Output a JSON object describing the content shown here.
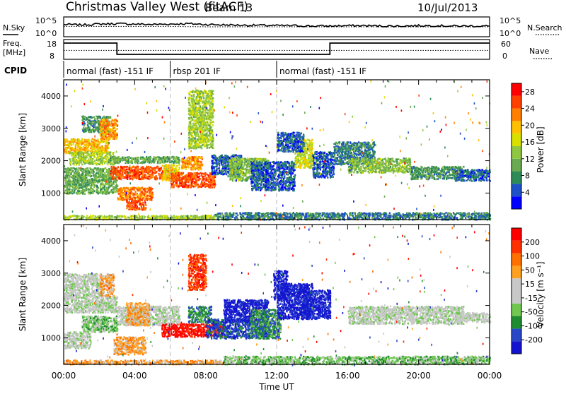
{
  "header": {
    "title": "Christmas Valley West (fitACF)",
    "beam": "Beam 13",
    "date": "10/Jul/2013"
  },
  "labels": {
    "nsky": "N.Sky",
    "nsearch": "N.Search",
    "freq": "Freq.",
    "mhz": "[MHz]",
    "nave": "Nave",
    "cpid": "CPID"
  },
  "cpid_segments": [
    {
      "start_hour": 0,
      "label": "normal (fast) -151 IF"
    },
    {
      "start_hour": 6,
      "label": "rbsp 201 IF"
    },
    {
      "start_hour": 12,
      "label": "normal (fast) -151 IF"
    }
  ],
  "noise_axis": {
    "left_ticks": [
      "10^5",
      "10^0"
    ],
    "right_ticks": [
      "10^5",
      "10^0"
    ]
  },
  "freq_axis": {
    "left_ticks": [
      "18",
      "8"
    ],
    "right_ticks": [
      "60",
      "0"
    ]
  },
  "chart_data": [
    {
      "type": "line",
      "name": "noise",
      "x_unit": "hour UT",
      "series": [
        {
          "name": "N.Sky",
          "x": [
            0,
            1,
            2,
            3,
            4,
            5,
            6,
            7,
            8,
            9,
            10,
            11,
            12,
            13,
            14,
            15,
            16,
            17,
            18,
            19,
            20,
            21,
            22,
            23,
            24
          ],
          "y": [
            3.1,
            3.0,
            3.2,
            3.3,
            3.2,
            3.1,
            3.2,
            3.3,
            3.1,
            3.0,
            2.9,
            2.9,
            2.8,
            2.8,
            2.7,
            2.7,
            2.8,
            2.8,
            2.7,
            2.7,
            2.8,
            2.8,
            2.7,
            2.7,
            2.7
          ]
        },
        {
          "name": "N.Search",
          "x": [
            0,
            2,
            4,
            6,
            8,
            10,
            12,
            14,
            16,
            18,
            20,
            22,
            24
          ],
          "y": [
            2.6,
            2.6,
            2.6,
            2.6,
            2.5,
            2.5,
            2.5,
            2.5,
            2.5,
            2.5,
            2.5,
            2.5,
            2.5
          ]
        }
      ]
    },
    {
      "type": "line",
      "name": "frequency",
      "x_unit": "hour UT",
      "ylim": [
        8,
        18
      ],
      "series": [
        {
          "name": "Freq.",
          "x": [
            0,
            3,
            3,
            15,
            15,
            24
          ],
          "y": [
            16.2,
            16.2,
            10.5,
            10.5,
            16.2,
            16.2
          ]
        },
        {
          "name": "Nave",
          "x": [
            0,
            24
          ],
          "y": [
            12.5,
            12.5
          ]
        }
      ]
    },
    {
      "type": "heatmap",
      "name": "power",
      "xlabel": "",
      "ylabel": "Slant Range [km]",
      "xlim": [
        0,
        24
      ],
      "ylim": [
        180,
        4500
      ],
      "yticks": [
        1000,
        2000,
        3000,
        4000
      ],
      "colorbar": {
        "label": "Power [dB]",
        "ticks": [
          4,
          8,
          12,
          16,
          20,
          24,
          28
        ],
        "range": [
          0,
          30
        ],
        "colors": [
          "#0000ff",
          "#1e50c8",
          "#2e8b57",
          "#6aaa50",
          "#8fc840",
          "#d8e000",
          "#ffc000",
          "#ff8000",
          "#ff4000",
          "#ff0000"
        ]
      },
      "blobs": [
        {
          "h0": 0.0,
          "h1": 2.5,
          "r0": 2250,
          "r1": 2700,
          "level": 20
        },
        {
          "h0": 0.3,
          "h1": 2.8,
          "r0": 1900,
          "r1": 2300,
          "level": 14
        },
        {
          "h0": 0.0,
          "h1": 3.0,
          "r0": 1000,
          "r1": 1800,
          "level": 10
        },
        {
          "h0": 1.0,
          "h1": 2.6,
          "r0": 2900,
          "r1": 3400,
          "level": 8
        },
        {
          "h0": 2.0,
          "h1": 3.0,
          "r0": 2700,
          "r1": 3300,
          "level": 22
        },
        {
          "h0": 2.6,
          "h1": 6.0,
          "r0": 1450,
          "r1": 1850,
          "level": 26
        },
        {
          "h0": 2.5,
          "h1": 6.5,
          "r0": 1950,
          "r1": 2150,
          "level": 10
        },
        {
          "h0": 3.0,
          "h1": 5.0,
          "r0": 800,
          "r1": 1200,
          "level": 24
        },
        {
          "h0": 3.5,
          "h1": 4.6,
          "r0": 500,
          "r1": 800,
          "level": 26
        },
        {
          "h0": 5.5,
          "h1": 6.5,
          "r0": 1400,
          "r1": 1900,
          "level": 18
        },
        {
          "h0": 6.0,
          "h1": 8.5,
          "r0": 1200,
          "r1": 1650,
          "level": 26
        },
        {
          "h0": 6.6,
          "h1": 7.8,
          "r0": 1750,
          "r1": 2150,
          "level": 22
        },
        {
          "h0": 7.0,
          "h1": 8.4,
          "r0": 2400,
          "r1": 4200,
          "level": 14
        },
        {
          "h0": 8.3,
          "h1": 10.0,
          "r0": 1600,
          "r1": 2200,
          "level": 4
        },
        {
          "h0": 9.3,
          "h1": 11.5,
          "r0": 1400,
          "r1": 2100,
          "level": 12
        },
        {
          "h0": 10.5,
          "h1": 13.0,
          "r0": 1100,
          "r1": 2000,
          "level": 4
        },
        {
          "h0": 13.0,
          "h1": 14.0,
          "r0": 1800,
          "r1": 2700,
          "level": 16
        },
        {
          "h0": 12.0,
          "h1": 13.5,
          "r0": 2300,
          "r1": 2900,
          "level": 4
        },
        {
          "h0": 14.0,
          "h1": 15.2,
          "r0": 1500,
          "r1": 2300,
          "level": 4
        },
        {
          "h0": 15.2,
          "h1": 17.5,
          "r0": 1900,
          "r1": 2600,
          "level": 6
        },
        {
          "h0": 16.0,
          "h1": 19.5,
          "r0": 1650,
          "r1": 2100,
          "level": 12
        },
        {
          "h0": 19.5,
          "h1": 22.5,
          "r0": 1450,
          "r1": 1850,
          "level": 8
        },
        {
          "h0": 22.0,
          "h1": 24.0,
          "r0": 1400,
          "r1": 1750,
          "level": 4
        },
        {
          "h0": 8.5,
          "h1": 24.0,
          "r0": 200,
          "r1": 420,
          "level": 6
        },
        {
          "h0": 0.0,
          "h1": 8.5,
          "r0": 200,
          "r1": 330,
          "level": 14
        }
      ]
    },
    {
      "type": "heatmap",
      "name": "velocity",
      "xlabel": "Time UT",
      "ylabel": "Slant Range [km]",
      "xlim": [
        0,
        24
      ],
      "ylim": [
        180,
        4500
      ],
      "xticks": [
        "00:00",
        "04:00",
        "08:00",
        "12:00",
        "16:00",
        "20:00",
        "00:00"
      ],
      "yticks": [
        1000,
        2000,
        3000,
        4000
      ],
      "colorbar": {
        "label": "Velocity [m s⁻¹]",
        "ticks": [
          "200",
          "100",
          "50",
          "15",
          "-15",
          "-50",
          "-100",
          "-200"
        ],
        "colors": [
          "#1414d0",
          "#2848c8",
          "#1e8c30",
          "#70c850",
          "#c8c8c8",
          "#c8c8c8",
          "#ffa020",
          "#ff7000",
          "#ff3000",
          "#ff0000"
        ]
      },
      "blobs": [
        {
          "h0": 0.0,
          "h1": 2.2,
          "r0": 2300,
          "r1": 3000,
          "level": 4
        },
        {
          "h0": 0.0,
          "h1": 3.0,
          "r0": 1800,
          "r1": 2300,
          "level": 4
        },
        {
          "h0": 0.0,
          "h1": 1.5,
          "r0": 700,
          "r1": 1200,
          "level": 4
        },
        {
          "h0": 1.0,
          "h1": 3.0,
          "r0": 1200,
          "r1": 1700,
          "level": 3
        },
        {
          "h0": 2.0,
          "h1": 2.8,
          "r0": 2300,
          "r1": 3000,
          "level": 6
        },
        {
          "h0": 3.0,
          "h1": 6.5,
          "r0": 1400,
          "r1": 2000,
          "level": 4
        },
        {
          "h0": 3.5,
          "h1": 4.8,
          "r0": 1400,
          "r1": 2100,
          "level": 6
        },
        {
          "h0": 2.8,
          "h1": 4.6,
          "r0": 500,
          "r1": 1050,
          "level": 6
        },
        {
          "h0": 5.5,
          "h1": 9.0,
          "r0": 1050,
          "r1": 1450,
          "level": 9
        },
        {
          "h0": 7.0,
          "h1": 8.3,
          "r0": 1500,
          "r1": 2000,
          "level": 2
        },
        {
          "h0": 7.0,
          "h1": 8.0,
          "r0": 2500,
          "r1": 3600,
          "level": 8
        },
        {
          "h0": 8.0,
          "h1": 11.5,
          "r0": 1000,
          "r1": 1600,
          "level": 1
        },
        {
          "h0": 9.0,
          "h1": 11.5,
          "r0": 1500,
          "r1": 2200,
          "level": 0
        },
        {
          "h0": 10.5,
          "h1": 12.2,
          "r0": 1000,
          "r1": 1900,
          "level": 2
        },
        {
          "h0": 11.8,
          "h1": 12.6,
          "r0": 2200,
          "r1": 3100,
          "level": 0
        },
        {
          "h0": 12.0,
          "h1": 14.0,
          "r0": 1600,
          "r1": 2700,
          "level": 0
        },
        {
          "h0": 13.4,
          "h1": 15.0,
          "r0": 1600,
          "r1": 2500,
          "level": 0
        },
        {
          "h0": 16.0,
          "h1": 22.5,
          "r0": 1450,
          "r1": 2000,
          "level": 4
        },
        {
          "h0": 22.0,
          "h1": 24.0,
          "r0": 1500,
          "r1": 1800,
          "level": 4
        },
        {
          "h0": 9.0,
          "h1": 24.0,
          "r0": 200,
          "r1": 450,
          "level": 3
        },
        {
          "h0": 0.0,
          "h1": 9.0,
          "r0": 200,
          "r1": 330,
          "level": 6
        }
      ]
    }
  ]
}
